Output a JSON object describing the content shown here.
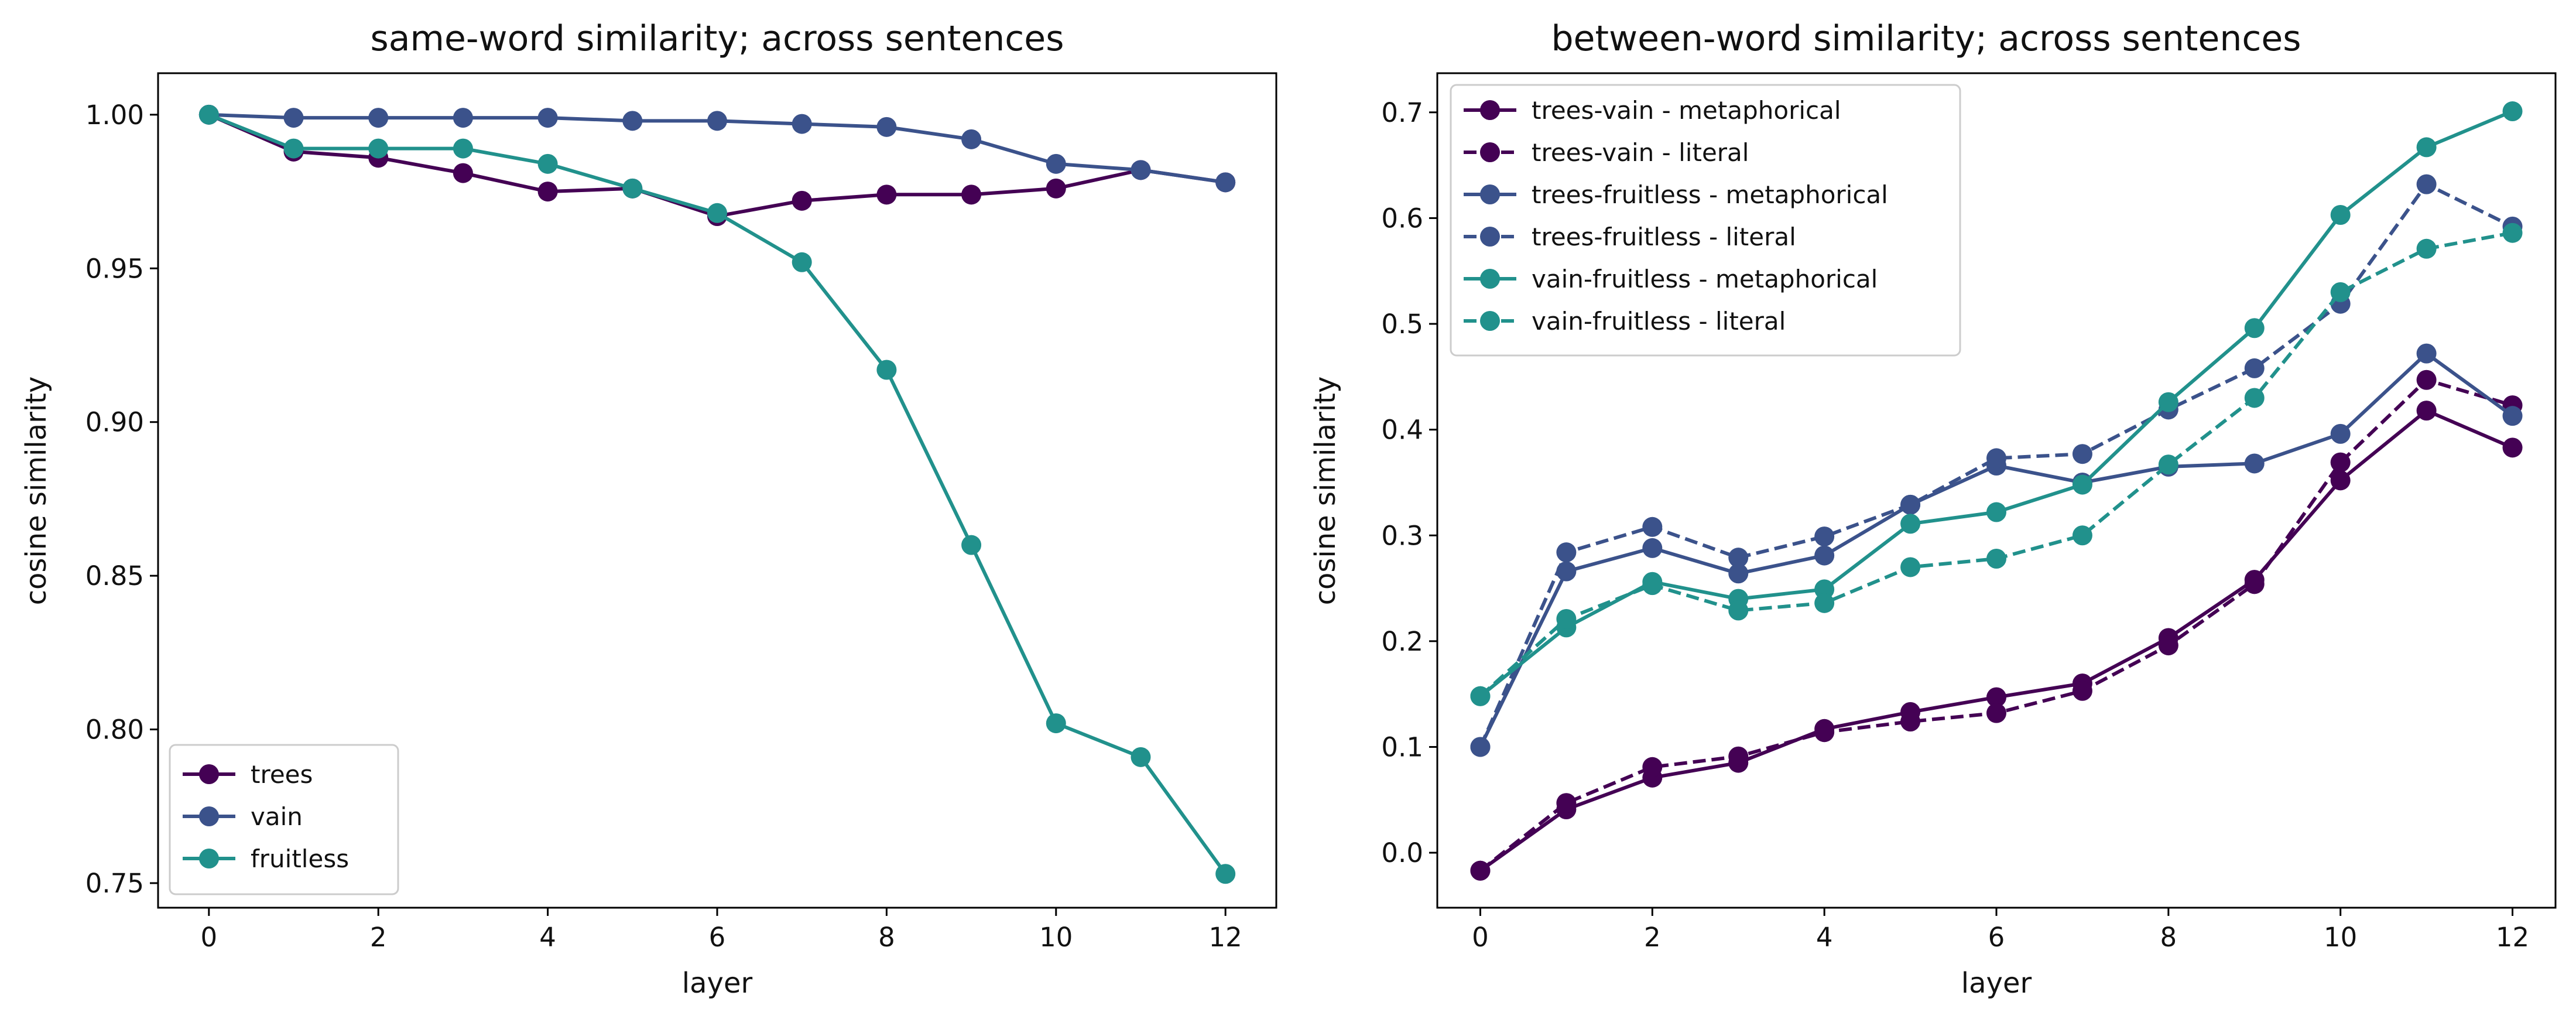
{
  "colors": {
    "trees": "#440154",
    "vain": "#3b528b",
    "fruitless": "#21918c"
  },
  "chart_data": [
    {
      "type": "line",
      "title": "same-word similarity; across sentences",
      "xlabel": "layer",
      "ylabel": "cosine similarity",
      "xlim": [
        -0.6,
        12.6
      ],
      "ylim": [
        0.742,
        1.0135
      ],
      "xticks": [
        "0",
        "2",
        "4",
        "6",
        "8",
        "10",
        "12"
      ],
      "yticks": [
        "0.75",
        "0.80",
        "0.85",
        "0.90",
        "0.95",
        "1.00"
      ],
      "legend_position": "lower-left",
      "x": [
        0,
        1,
        2,
        3,
        4,
        5,
        6,
        7,
        8,
        9,
        10,
        11,
        12
      ],
      "series": [
        {
          "name": "trees",
          "color": "#440154",
          "dash": false,
          "values": [
            1.0,
            0.988,
            0.986,
            0.981,
            0.975,
            0.976,
            0.967,
            0.972,
            0.974,
            0.974,
            0.976,
            0.982,
            0.978
          ]
        },
        {
          "name": "vain",
          "color": "#3b528b",
          "dash": false,
          "values": [
            1.0,
            0.999,
            0.999,
            0.999,
            0.999,
            0.998,
            0.998,
            0.997,
            0.996,
            0.992,
            0.984,
            0.982,
            0.978
          ]
        },
        {
          "name": "fruitless",
          "color": "#21918c",
          "dash": false,
          "values": [
            1.0,
            0.989,
            0.989,
            0.989,
            0.984,
            0.976,
            0.968,
            0.952,
            0.917,
            0.86,
            0.802,
            0.791,
            0.753
          ]
        }
      ]
    },
    {
      "type": "line",
      "title": "between-word similarity; across sentences",
      "xlabel": "layer",
      "ylabel": "cosine similarity",
      "xlim": [
        -0.5,
        12.5
      ],
      "ylim": [
        -0.052,
        0.737
      ],
      "xticks": [
        "0",
        "2",
        "4",
        "6",
        "8",
        "10",
        "12"
      ],
      "yticks": [
        "0.0",
        "0.1",
        "0.2",
        "0.3",
        "0.4",
        "0.5",
        "0.6",
        "0.7"
      ],
      "legend_position": "upper-left",
      "x": [
        0,
        1,
        2,
        3,
        4,
        5,
        6,
        7,
        8,
        9,
        10,
        11,
        12
      ],
      "series": [
        {
          "name": "trees-vain - metaphorical",
          "color": "#440154",
          "dash": false,
          "values": [
            -0.017,
            0.041,
            0.071,
            0.085,
            0.117,
            0.133,
            0.147,
            0.16,
            0.203,
            0.258,
            0.352,
            0.418,
            0.383
          ]
        },
        {
          "name": "trees-vain - literal",
          "color": "#440154",
          "dash": true,
          "values": [
            -0.017,
            0.047,
            0.081,
            0.091,
            0.114,
            0.124,
            0.132,
            0.153,
            0.196,
            0.254,
            0.369,
            0.447,
            0.423
          ]
        },
        {
          "name": "trees-fruitless - metaphorical",
          "color": "#3b528b",
          "dash": false,
          "values": [
            0.1,
            0.266,
            0.288,
            0.264,
            0.281,
            0.329,
            0.366,
            0.35,
            0.365,
            0.368,
            0.396,
            0.472,
            0.413
          ]
        },
        {
          "name": "trees-fruitless - literal",
          "color": "#3b528b",
          "dash": true,
          "values": [
            0.1,
            0.284,
            0.308,
            0.279,
            0.299,
            0.329,
            0.373,
            0.377,
            0.419,
            0.458,
            0.519,
            0.632,
            0.592
          ]
        },
        {
          "name": "vain-fruitless - metaphorical",
          "color": "#21918c",
          "dash": false,
          "values": [
            0.148,
            0.213,
            0.256,
            0.24,
            0.249,
            0.311,
            0.322,
            0.348,
            0.426,
            0.496,
            0.603,
            0.667,
            0.701
          ]
        },
        {
          "name": "vain-fruitless - literal",
          "color": "#21918c",
          "dash": true,
          "values": [
            0.148,
            0.221,
            0.253,
            0.229,
            0.236,
            0.27,
            0.278,
            0.3,
            0.367,
            0.43,
            0.53,
            0.571,
            0.586
          ]
        }
      ]
    }
  ]
}
